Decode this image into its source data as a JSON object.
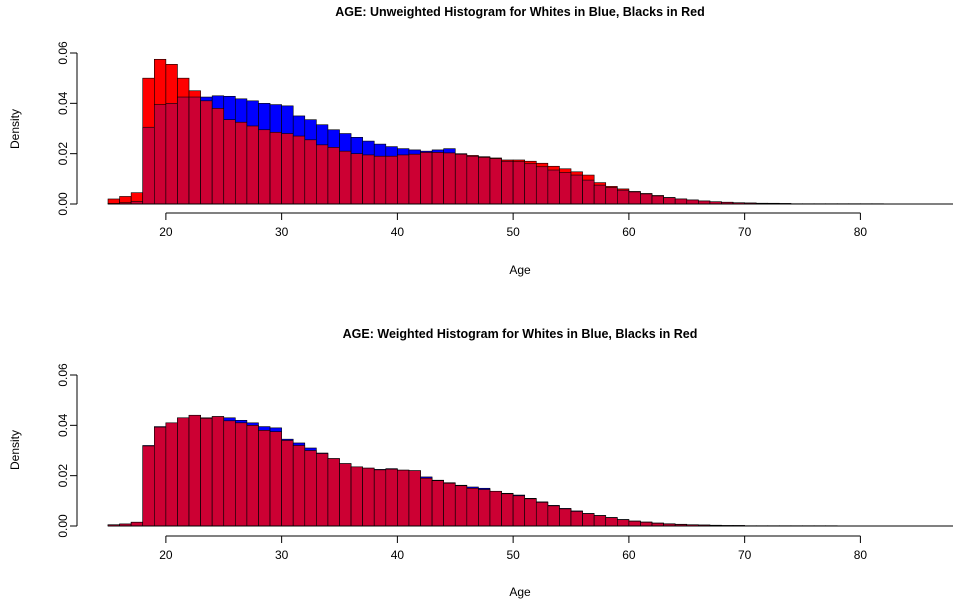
{
  "chart_data": [
    {
      "type": "bar",
      "title": "AGE: Unweighted Histogram for Whites in Blue, Blacks in Red",
      "xlabel": "Age",
      "ylabel": "Density",
      "xlim": [
        15,
        88
      ],
      "ylim": [
        0,
        0.06
      ],
      "xticks": [
        "20",
        "30",
        "40",
        "50",
        "60",
        "70",
        "80"
      ],
      "yticks": [
        "0.00",
        "0.02",
        "0.04",
        "0.06"
      ],
      "bin_start": 15,
      "bin_width": 1,
      "colors": {
        "whites": "#0000ff",
        "blacks": "#ff0000",
        "overlap": "#cc0033"
      },
      "series": [
        {
          "values": [
            0.0002,
            0.0005,
            0.001,
            0.0305,
            0.0395,
            0.04,
            0.0425,
            0.0425,
            0.0425,
            0.043,
            0.0428,
            0.0418,
            0.041,
            0.04,
            0.0395,
            0.039,
            0.035,
            0.0335,
            0.0315,
            0.0295,
            0.028,
            0.0265,
            0.025,
            0.0238,
            0.0228,
            0.022,
            0.0215,
            0.021,
            0.0215,
            0.022,
            0.02,
            0.019,
            0.0185,
            0.018,
            0.017,
            0.0168,
            0.016,
            0.0148,
            0.0135,
            0.0125,
            0.0115,
            0.0095,
            0.0075,
            0.0065,
            0.0055,
            0.0048,
            0.004,
            0.0032,
            0.0025,
            0.002,
            0.0016,
            0.0012,
            0.0009,
            0.0007,
            0.0005,
            0.0004,
            0.0003,
            0.0002,
            0.0002,
            0.0001,
            0.0001,
            0.0001,
            0.0001,
            0.0001,
            0.0001,
            0.0001,
            0.0001,
            0.0,
            0.0,
            0.0,
            0.0,
            0.0,
            0.0
          ]
        },
        {
          "values": [
            0.002,
            0.003,
            0.0045,
            0.05,
            0.0575,
            0.0555,
            0.05,
            0.045,
            0.041,
            0.038,
            0.0335,
            0.0325,
            0.031,
            0.0295,
            0.0285,
            0.028,
            0.027,
            0.0255,
            0.0235,
            0.0225,
            0.021,
            0.02,
            0.0195,
            0.019,
            0.019,
            0.0195,
            0.0198,
            0.0205,
            0.0205,
            0.0203,
            0.0198,
            0.0193,
            0.0188,
            0.0183,
            0.0175,
            0.0175,
            0.017,
            0.0162,
            0.015,
            0.014,
            0.0128,
            0.0115,
            0.0085,
            0.007,
            0.006,
            0.005,
            0.0042,
            0.0034,
            0.0026,
            0.002,
            0.0016,
            0.0012,
            0.0009,
            0.0007,
            0.0005,
            0.0004,
            0.0003,
            0.0003,
            0.0002,
            0.0001,
            0.0001,
            0.0001,
            0.0001,
            0.0001,
            0.0001,
            0.0001,
            0.0001,
            0.0,
            0.0,
            0.0,
            0.0,
            0.0,
            0.0
          ]
        }
      ]
    },
    {
      "type": "bar",
      "title": "AGE: Weighted Histogram for Whites in Blue, Blacks in Red",
      "xlabel": "Age",
      "ylabel": "Density",
      "xlim": [
        15,
        88
      ],
      "ylim": [
        0,
        0.06
      ],
      "xticks": [
        "20",
        "30",
        "40",
        "50",
        "60",
        "70",
        "80"
      ],
      "yticks": [
        "0.00",
        "0.02",
        "0.04",
        "0.06"
      ],
      "bin_start": 15,
      "bin_width": 1,
      "colors": {
        "whites": "#0000ff",
        "blacks": "#ff0000",
        "overlap": "#cc0033"
      },
      "series": [
        {
          "values": [
            0.0005,
            0.0008,
            0.0015,
            0.032,
            0.0395,
            0.041,
            0.043,
            0.044,
            0.043,
            0.0435,
            0.043,
            0.042,
            0.041,
            0.0395,
            0.039,
            0.0345,
            0.033,
            0.031,
            0.029,
            0.0268,
            0.0248,
            0.0235,
            0.023,
            0.0225,
            0.0228,
            0.0222,
            0.022,
            0.0195,
            0.0182,
            0.0172,
            0.0162,
            0.0155,
            0.015,
            0.0138,
            0.013,
            0.0123,
            0.011,
            0.0096,
            0.0082,
            0.007,
            0.006,
            0.005,
            0.0042,
            0.0034,
            0.0026,
            0.002,
            0.0016,
            0.0012,
            0.0009,
            0.0007,
            0.0005,
            0.0004,
            0.0003,
            0.0002,
            0.0002,
            0.0001,
            0.0001,
            0.0001,
            0.0001,
            0.0001,
            0.0001,
            0.0001,
            0.0001,
            0.0,
            0.0,
            0.0,
            0.0,
            0.0,
            0.0,
            0.0,
            0.0,
            0.0,
            0.0
          ]
        },
        {
          "values": [
            0.0005,
            0.0008,
            0.0015,
            0.0318,
            0.0393,
            0.041,
            0.043,
            0.044,
            0.0428,
            0.0435,
            0.0418,
            0.041,
            0.04,
            0.038,
            0.0375,
            0.034,
            0.032,
            0.03,
            0.0288,
            0.0268,
            0.0248,
            0.0235,
            0.023,
            0.0223,
            0.0226,
            0.0222,
            0.022,
            0.019,
            0.018,
            0.017,
            0.016,
            0.015,
            0.0145,
            0.0138,
            0.0128,
            0.012,
            0.0108,
            0.0094,
            0.008,
            0.0068,
            0.0058,
            0.0049,
            0.0041,
            0.0033,
            0.0025,
            0.0019,
            0.0015,
            0.0011,
            0.0008,
            0.0006,
            0.0005,
            0.0004,
            0.0003,
            0.0002,
            0.0002,
            0.0001,
            0.0001,
            0.0001,
            0.0001,
            0.0001,
            0.0001,
            0.0001,
            0.0001,
            0.0,
            0.0,
            0.0,
            0.0,
            0.0,
            0.0,
            0.0,
            0.0,
            0.0,
            0.0
          ]
        }
      ]
    }
  ]
}
